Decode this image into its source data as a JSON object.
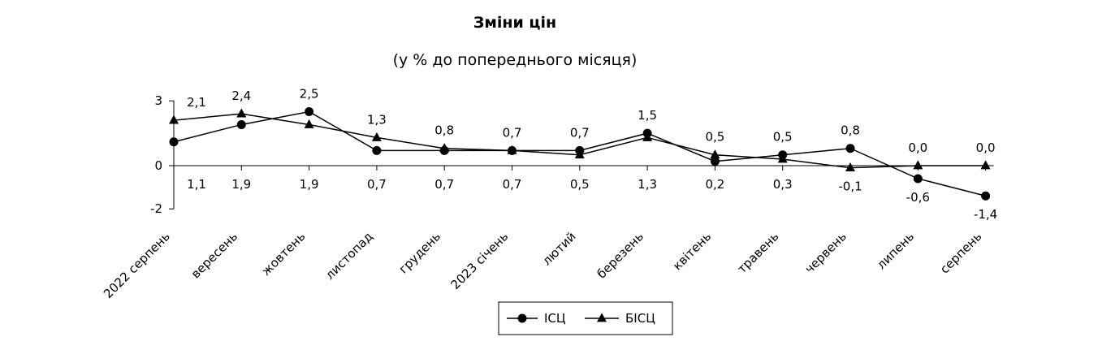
{
  "chart_data": {
    "type": "line",
    "title": "Зміни цін",
    "subtitle": "(у % до попереднього місяця)",
    "categories": [
      "2022 серпень",
      "вересень",
      "жовтень",
      "листопад",
      "грудень",
      "2023 січень",
      "лютий",
      "березень",
      "квітень",
      "травень",
      "червень",
      "липень",
      "серпень"
    ],
    "ylim": [
      -2,
      3
    ],
    "yticks": [
      3,
      0,
      -2
    ],
    "ytick_labels": [
      "3",
      "0",
      "-2"
    ],
    "grid": false,
    "legend_position": "bottom",
    "series": [
      {
        "name": "ІСЦ",
        "marker": "circle",
        "values": [
          1.1,
          1.9,
          2.5,
          0.7,
          0.7,
          0.7,
          0.7,
          1.5,
          0.2,
          0.5,
          0.8,
          -0.6,
          -1.4
        ],
        "labels": [
          "1,1",
          "1,9",
          "2,5",
          "0,7",
          "0,7",
          "0,7",
          "0,7",
          "1,5",
          "0,2",
          "0,5",
          "0,8",
          "-0,6",
          "-1,4"
        ]
      },
      {
        "name": "БІСЦ",
        "marker": "triangle",
        "values": [
          2.1,
          2.4,
          1.9,
          1.3,
          0.8,
          0.7,
          0.5,
          1.3,
          0.5,
          0.3,
          -0.1,
          0.0,
          0.0
        ],
        "labels": [
          "2,1",
          "2,4",
          "1,9",
          "1,3",
          "0,8",
          "0,7",
          "0,5",
          "1,3",
          "0,5",
          "0,3",
          "-0,1",
          "0,0",
          "0,0"
        ]
      }
    ]
  }
}
